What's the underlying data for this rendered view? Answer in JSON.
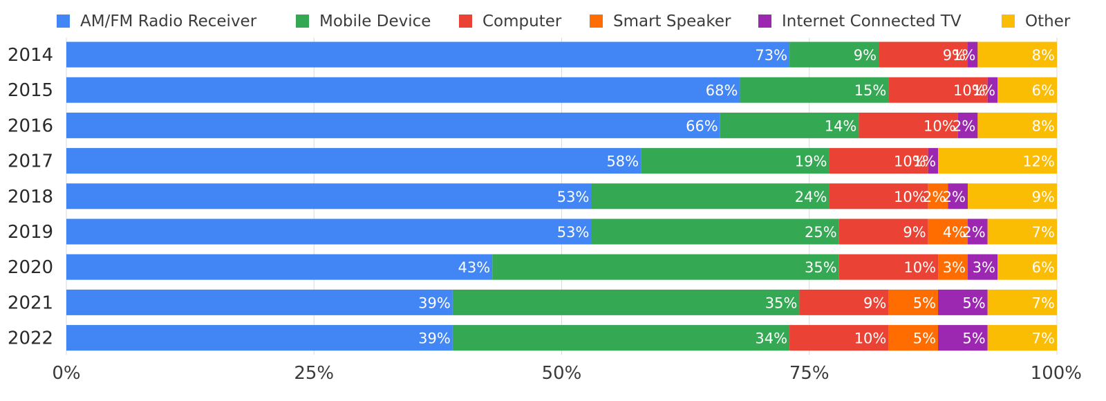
{
  "chart_data": {
    "type": "bar",
    "orientation": "horizontal",
    "stacked": true,
    "title": "",
    "xlabel": "",
    "ylabel": "",
    "categories": [
      "2014",
      "2015",
      "2016",
      "2017",
      "2018",
      "2019",
      "2020",
      "2021",
      "2022"
    ],
    "xlim": [
      0,
      100
    ],
    "x_ticks": [
      "0%",
      "25%",
      "50%",
      "75%",
      "100%"
    ],
    "x_tick_values": [
      0,
      25,
      50,
      75,
      100
    ],
    "grid": true,
    "legend_position": "top",
    "series": [
      {
        "name": "AM/FM Radio Receiver",
        "color": "#4285f4",
        "values": [
          73,
          68,
          66,
          58,
          53,
          53,
          43,
          39,
          39
        ],
        "labels": [
          "73%",
          "68%",
          "66%",
          "58%",
          "53%",
          "53%",
          "43%",
          "39%",
          "39%"
        ]
      },
      {
        "name": "Mobile Device",
        "color": "#34a853",
        "values": [
          9,
          15,
          14,
          19,
          24,
          25,
          35,
          35,
          34
        ],
        "labels": [
          "9%",
          "15%",
          "14%",
          "19%",
          "24%",
          "25%",
          "35%",
          "35%",
          "34%"
        ]
      },
      {
        "name": "Computer",
        "color": "#ea4335",
        "values": [
          9,
          10,
          10,
          10,
          10,
          9,
          10,
          9,
          10
        ],
        "labels": [
          "9%",
          "10%",
          "10%",
          "10%",
          "10%",
          "9%",
          "10%",
          "9%",
          "10%"
        ]
      },
      {
        "name": "Smart Speaker",
        "color": "#ff6d01",
        "values": [
          0,
          0,
          0,
          0,
          2,
          4,
          3,
          5,
          5
        ],
        "labels": [
          "",
          "",
          "",
          "",
          "2%",
          "4%",
          "3%",
          "5%",
          "5%"
        ]
      },
      {
        "name": "Internet Connected TV",
        "color": "#9c27b0",
        "values": [
          1,
          1,
          2,
          1,
          2,
          2,
          3,
          5,
          5
        ],
        "labels": [
          "1%",
          "1%",
          "2%",
          "1%",
          "2%",
          "2%",
          "3%",
          "5%",
          "5%"
        ]
      },
      {
        "name": "Other",
        "color": "#fbbc04",
        "values": [
          8,
          6,
          8,
          12,
          9,
          7,
          6,
          7,
          7
        ],
        "labels": [
          "8%",
          "6%",
          "8%",
          "12%",
          "9%",
          "7%",
          "6%",
          "7%",
          "7%"
        ]
      }
    ]
  }
}
